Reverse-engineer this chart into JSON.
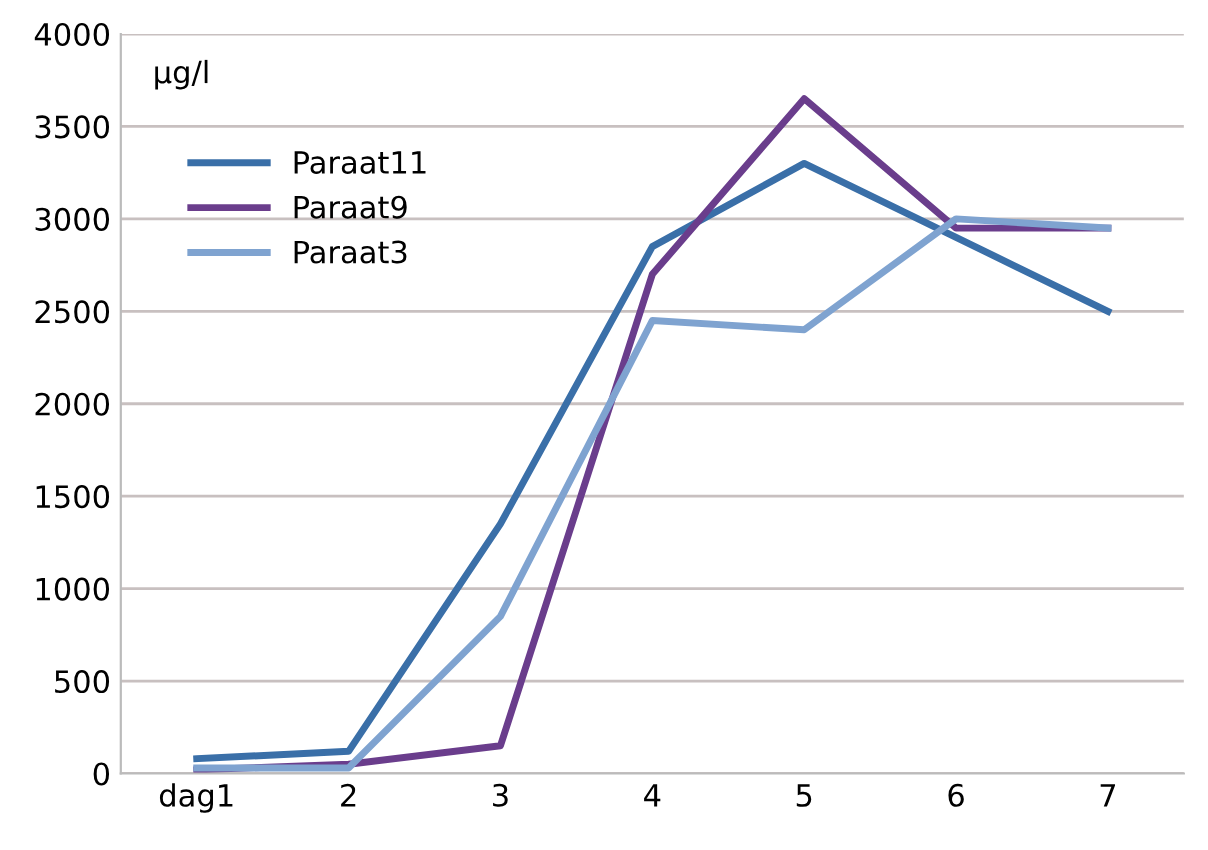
{
  "chart_data": {
    "type": "line",
    "ylabel": "µg/l",
    "categories": [
      "dag1",
      "2",
      "3",
      "4",
      "5",
      "6",
      "7"
    ],
    "series": [
      {
        "name": "Paraat11",
        "color": "#3a6fa8",
        "values": [
          80,
          120,
          1350,
          2850,
          3300,
          2900,
          2500
        ]
      },
      {
        "name": "Paraat9",
        "color": "#6a3d8c",
        "values": [
          20,
          50,
          150,
          2700,
          3650,
          2950,
          2950
        ]
      },
      {
        "name": "Paraat3",
        "color": "#7fa3d0",
        "values": [
          30,
          30,
          850,
          2450,
          2400,
          3000,
          2950
        ]
      }
    ],
    "ylim": [
      0,
      4000
    ],
    "yticks": [
      0,
      500,
      1000,
      1500,
      2000,
      2500,
      3000,
      3500,
      4000
    ],
    "grid": "y",
    "legend": "top left",
    "marker": "none",
    "line_style": "solid"
  }
}
